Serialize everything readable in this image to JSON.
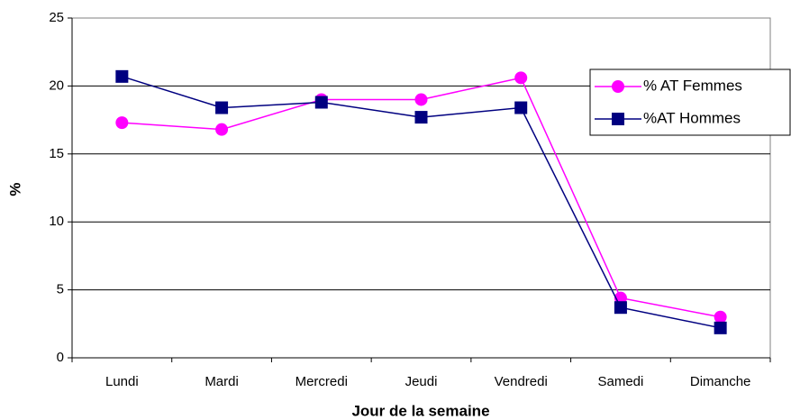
{
  "chart_data": {
    "type": "line",
    "x_label": "Jour de la semaine",
    "y_label": "%",
    "categories": [
      "Lundi",
      "Mardi",
      "Mercredi",
      "Jeudi",
      "Vendredi",
      "Samedi",
      "Dimanche"
    ],
    "series": [
      {
        "name": "% AT Femmes",
        "color": "#ff00ff",
        "marker": "circle",
        "values": [
          17.3,
          16.8,
          19.0,
          19.0,
          20.6,
          4.4,
          3.0
        ]
      },
      {
        "name": "%AT Hommes",
        "color": "#000080",
        "marker": "square",
        "values": [
          20.7,
          18.4,
          18.8,
          17.7,
          18.4,
          3.7,
          2.2
        ]
      }
    ],
    "ylim": [
      0,
      25
    ],
    "yticks": [
      0,
      5,
      10,
      15,
      20,
      25
    ],
    "grid": true,
    "legend": "right"
  }
}
